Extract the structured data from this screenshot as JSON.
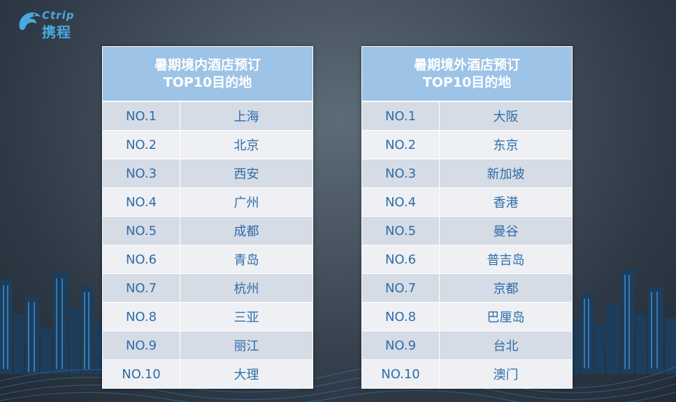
{
  "logo": {
    "en": "Ctrip",
    "cn": "携程"
  },
  "colors": {
    "header_bg": "#9dc3e6",
    "row_odd": "#d5dce6",
    "row_even": "#eef0f4",
    "text_blue": "#2e6ca8",
    "brand_blue": "#4aa8e0"
  },
  "domestic": {
    "title_line1": "暑期境内酒店预订",
    "title_line2": "TOP10目的地",
    "rows": [
      {
        "rank": "NO.1",
        "city": "上海"
      },
      {
        "rank": "NO.2",
        "city": "北京"
      },
      {
        "rank": "NO.3",
        "city": "西安"
      },
      {
        "rank": "NO.4",
        "city": "广州"
      },
      {
        "rank": "NO.5",
        "city": "成都"
      },
      {
        "rank": "NO.6",
        "city": "青岛"
      },
      {
        "rank": "NO.7",
        "city": "杭州"
      },
      {
        "rank": "NO.8",
        "city": "三亚"
      },
      {
        "rank": "NO.9",
        "city": "丽江"
      },
      {
        "rank": "NO.10",
        "city": "大理"
      }
    ]
  },
  "overseas": {
    "title_line1": "暑期境外酒店预订",
    "title_line2": "TOP10目的地",
    "rows": [
      {
        "rank": "NO.1",
        "city": "大阪"
      },
      {
        "rank": "NO.2",
        "city": "东京"
      },
      {
        "rank": "NO.3",
        "city": "新加坡"
      },
      {
        "rank": "NO.4",
        "city": "香港"
      },
      {
        "rank": "NO.5",
        "city": "曼谷"
      },
      {
        "rank": "NO.6",
        "city": "普吉岛"
      },
      {
        "rank": "NO.7",
        "city": "京都"
      },
      {
        "rank": "NO.8",
        "city": "巴厘岛"
      },
      {
        "rank": "NO.9",
        "city": "台北"
      },
      {
        "rank": "NO.10",
        "city": "澳门"
      }
    ]
  }
}
